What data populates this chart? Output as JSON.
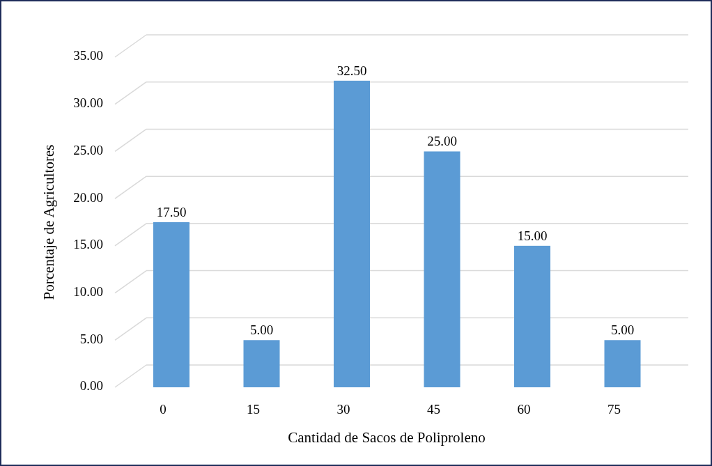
{
  "chart_data": {
    "type": "bar",
    "xlabel": "Cantidad de Sacos de Poliproleno",
    "ylabel": "Porcentaje de Agricultores",
    "categories": [
      "0",
      "15",
      "30",
      "45",
      "60",
      "75"
    ],
    "values": [
      17.5,
      5,
      32.5,
      25,
      15,
      5
    ],
    "value_labels": [
      "17.50",
      "5.00",
      "32.50",
      "25.00",
      "15.00",
      "5.00"
    ],
    "color": "#5b9bd5",
    "ylim": [
      0,
      35
    ],
    "yticks": [
      {
        "value": 0,
        "label": "0.00"
      },
      {
        "value": 5,
        "label": "5.00"
      },
      {
        "value": 10,
        "label": "10.00"
      },
      {
        "value": 15,
        "label": "15.00"
      },
      {
        "value": 20,
        "label": "20.00"
      },
      {
        "value": 25,
        "label": "25.00"
      },
      {
        "value": 30,
        "label": "30.00"
      },
      {
        "value": 35,
        "label": "35.00"
      }
    ],
    "grid": true
  }
}
